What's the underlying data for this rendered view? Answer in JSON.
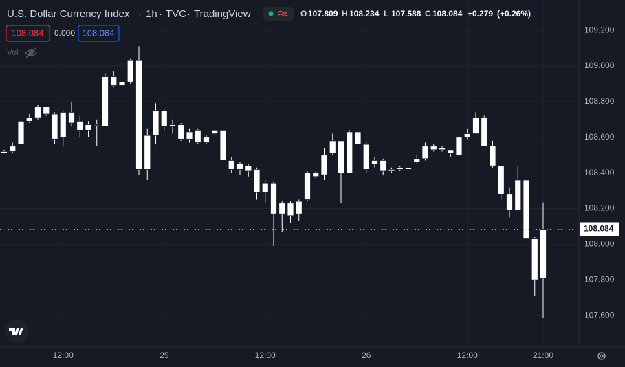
{
  "chart_data": {
    "type": "candlestick",
    "title": "U.S. Dollar Currency Index",
    "interval": "1h",
    "exchange": "TVC",
    "source": "TradingView",
    "legend": [
      {
        "label": "O",
        "value": 107.809
      },
      {
        "label": "H",
        "value": 108.234
      },
      {
        "label": "L",
        "value": 107.588
      },
      {
        "label": "C",
        "value": 108.084
      }
    ],
    "change": "+0.279",
    "change_percent": "(+0.26%)",
    "price_tags": [
      "108.084",
      "0.000",
      "108.084"
    ],
    "volume_label": "Vol",
    "last_price": {
      "value": 108.084,
      "label": "108.084"
    },
    "categories": [
      null,
      null,
      null,
      null,
      null,
      null,
      null,
      "12:00",
      null,
      null,
      null,
      null,
      null,
      null,
      null,
      null,
      null,
      null,
      null,
      "25",
      null,
      null,
      null,
      null,
      null,
      null,
      null,
      null,
      null,
      null,
      null,
      "12:00",
      null,
      null,
      null,
      null,
      null,
      null,
      null,
      null,
      null,
      null,
      null,
      "26",
      null,
      null,
      null,
      null,
      null,
      null,
      null,
      null,
      null,
      null,
      null,
      "12:00",
      null,
      null,
      null,
      null,
      null,
      null,
      null,
      null,
      "21:00"
    ],
    "open": [
      108.51,
      108.52,
      108.56,
      108.69,
      108.71,
      108.77,
      108.73,
      108.6,
      108.74,
      108.69,
      108.64,
      108.67,
      108.66,
      108.94,
      108.89,
      108.91,
      109.03,
      108.42,
      108.61,
      108.75,
      108.66,
      108.67,
      108.63,
      108.64,
      108.6,
      108.62,
      108.64,
      108.47,
      108.42,
      108.44,
      108.42,
      108.29,
      108.34,
      108.17,
      108.23,
      108.17,
      108.25,
      108.38,
      108.39,
      108.51,
      108.58,
      108.4,
      108.63,
      108.56,
      108.45,
      108.47,
      108.41,
      108.42,
      108.42,
      108.46,
      108.48,
      108.55,
      108.54,
      108.53,
      108.5,
      108.6,
      108.62,
      108.71,
      108.55,
      108.44,
      108.28,
      108.19,
      108.36,
      108.03,
      107.809
    ],
    "high": [
      108.53,
      108.57,
      108.69,
      108.73,
      108.78,
      108.77,
      108.74,
      108.75,
      108.8,
      108.72,
      108.69,
      108.7,
      108.96,
      108.97,
      109.0,
      109.04,
      109.11,
      108.65,
      108.79,
      108.76,
      108.7,
      108.68,
      108.65,
      108.65,
      108.61,
      108.64,
      108.66,
      108.49,
      108.46,
      108.45,
      108.43,
      108.36,
      108.35,
      108.24,
      108.24,
      108.25,
      108.41,
      108.41,
      108.54,
      108.62,
      108.58,
      108.64,
      108.67,
      108.57,
      108.49,
      108.48,
      108.43,
      108.44,
      108.43,
      108.5,
      108.57,
      108.56,
      108.55,
      108.53,
      108.62,
      108.65,
      108.74,
      108.72,
      108.58,
      108.44,
      108.32,
      108.44,
      108.36,
      108.04,
      108.234
    ],
    "low": [
      108.51,
      108.51,
      108.51,
      108.68,
      108.7,
      108.72,
      108.56,
      108.55,
      108.66,
      108.6,
      108.6,
      108.55,
      108.66,
      108.88,
      108.78,
      108.9,
      108.39,
      108.36,
      108.56,
      108.64,
      108.62,
      108.58,
      108.57,
      108.56,
      108.56,
      108.61,
      108.46,
      108.4,
      108.39,
      108.38,
      108.25,
      108.23,
      107.99,
      108.07,
      108.12,
      108.13,
      108.24,
      108.37,
      108.36,
      108.5,
      108.23,
      108.4,
      108.55,
      108.4,
      108.43,
      108.39,
      108.4,
      108.41,
      108.42,
      108.45,
      108.47,
      108.52,
      108.52,
      108.49,
      108.5,
      108.59,
      108.62,
      108.55,
      108.43,
      108.25,
      108.15,
      108.19,
      108.03,
      107.71,
      107.588
    ],
    "close": [
      108.52,
      108.55,
      108.69,
      108.71,
      108.77,
      108.73,
      108.59,
      108.74,
      108.68,
      108.64,
      108.67,
      108.67,
      108.94,
      108.89,
      108.91,
      109.03,
      108.42,
      108.61,
      108.75,
      108.66,
      108.67,
      108.59,
      108.59,
      108.57,
      108.57,
      108.64,
      108.47,
      108.42,
      108.45,
      108.41,
      108.29,
      108.34,
      108.17,
      108.23,
      108.16,
      108.24,
      108.4,
      108.4,
      108.5,
      108.58,
      108.4,
      108.63,
      108.56,
      108.42,
      108.47,
      108.41,
      108.42,
      108.43,
      108.43,
      108.48,
      108.55,
      108.53,
      108.53,
      108.51,
      108.6,
      108.62,
      108.71,
      108.55,
      108.44,
      108.28,
      108.19,
      108.36,
      108.03,
      107.8,
      108.084
    ],
    "up_color": "#ffffff",
    "down_color": "#ffffff",
    "ylim": [
      107.423,
      109.37
    ],
    "yticks": [
      {
        "value": 109.2,
        "label": "109.200"
      },
      {
        "value": 109.0,
        "label": "109.000"
      },
      {
        "value": 108.8,
        "label": "108.800"
      },
      {
        "value": 108.6,
        "label": "108.600"
      },
      {
        "value": 108.4,
        "label": "108.400"
      },
      {
        "value": 108.2,
        "label": "108.200"
      },
      {
        "value": 108.0,
        "label": "108.000"
      },
      {
        "value": 107.8,
        "label": "107.800"
      },
      {
        "value": 107.6,
        "label": "107.600"
      }
    ],
    "grid": true
  }
}
